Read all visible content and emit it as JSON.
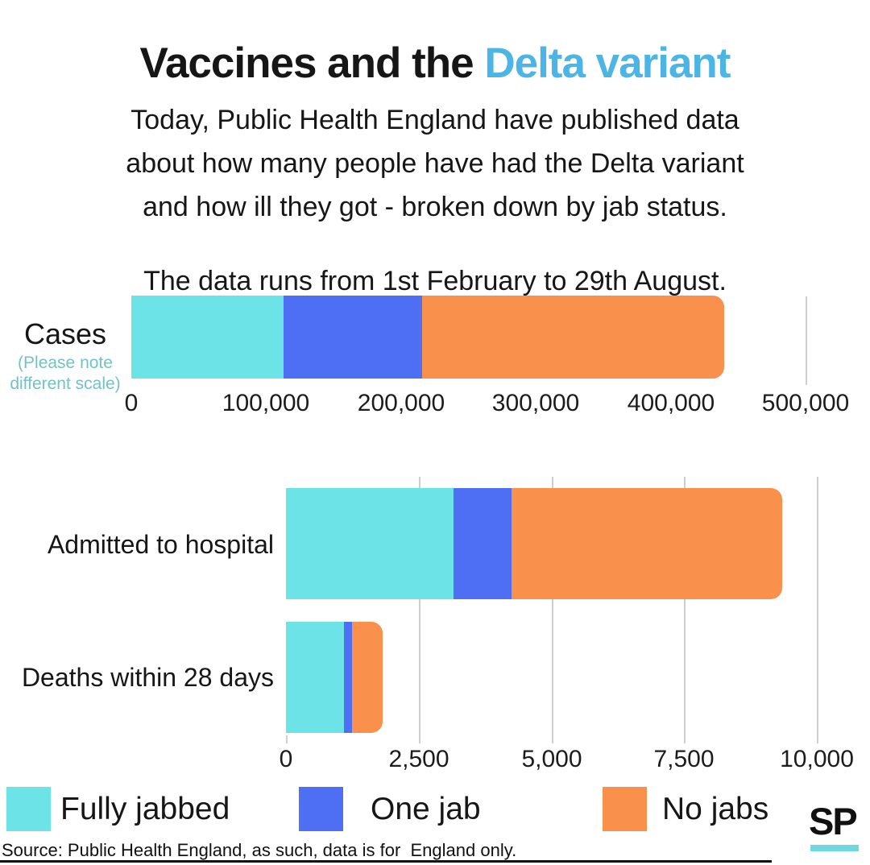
{
  "colors": {
    "fully_jabbed": "#6CE3E6",
    "one_jab": "#4E6FF3",
    "no_jabs": "#F9914D",
    "title_accent": "#4CB5E5",
    "note_teal": "#74C0CB",
    "gridline": "#CFCFCF",
    "sp_underline": "#6FD8DE",
    "text": "#161616"
  },
  "header": {
    "title_prefix": "Vaccines and the ",
    "title_accent": "Delta variant",
    "intro_lines": [
      "Today, Public Health England have published data",
      "about how many people have had the Delta variant",
      "and how ill they got - broken down by jab status."
    ],
    "date_note": "The data runs from 1st February to 29th August."
  },
  "chart_data": [
    {
      "id": "cases",
      "type": "bar",
      "stacked": true,
      "orientation": "horizontal",
      "row_label": "Cases",
      "note_lines": [
        "(Please note",
        "different scale)"
      ],
      "xlim": [
        0,
        500000
      ],
      "tick_values": [
        0,
        100000,
        200000,
        300000,
        400000,
        500000
      ],
      "tick_labels": [
        "0",
        "100,000",
        "200,000",
        "300,000",
        "400,000",
        "500,000"
      ],
      "grid_values": [
        500000
      ],
      "series": [
        {
          "name": "Fully jabbed",
          "value": 113000
        },
        {
          "name": "One jab",
          "value": 103000
        },
        {
          "name": "No jabs",
          "value": 224000
        }
      ],
      "total_approx": 440000
    },
    {
      "id": "outcomes",
      "type": "bar",
      "stacked": true,
      "orientation": "horizontal",
      "categories": [
        "Admitted to hospital",
        "Deaths within 28 days"
      ],
      "xlim": [
        0,
        10000
      ],
      "tick_values": [
        0,
        2500,
        5000,
        7500,
        10000
      ],
      "tick_labels": [
        "0",
        "2,500",
        "5,000",
        "7,500",
        "10,000"
      ],
      "grid_values": [
        2500,
        5000,
        7500,
        10000
      ],
      "series": [
        {
          "name": "Fully jabbed",
          "values": [
            3150,
            1090
          ]
        },
        {
          "name": "One jab",
          "values": [
            1100,
            150
          ]
        },
        {
          "name": "No jabs",
          "values": [
            5100,
            580
          ]
        }
      ]
    }
  ],
  "legend": {
    "items": [
      {
        "label": "Fully jabbed",
        "color": "#6CE3E6"
      },
      {
        "label": "One jab",
        "color": "#4E6FF3"
      },
      {
        "label": "No jabs",
        "color": "#F9914D"
      }
    ]
  },
  "footer": {
    "source": "Source: Public Health England, as such, data is for  England only.",
    "logo_text": "SP"
  }
}
